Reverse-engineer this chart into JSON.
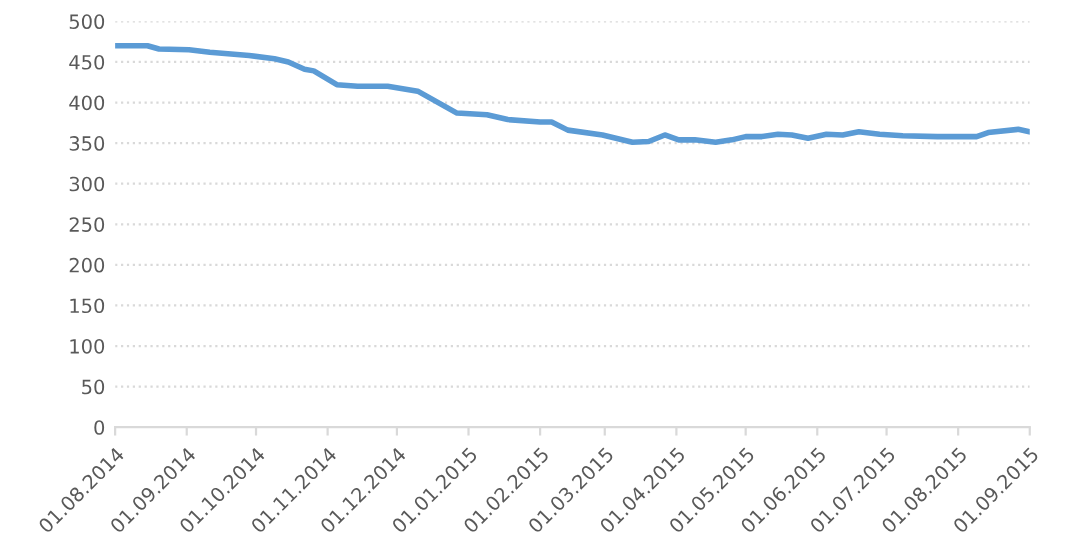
{
  "chart_data": {
    "type": "line",
    "x": [
      "2014-08-01",
      "2014-08-15",
      "2014-08-20",
      "2014-09-02",
      "2014-09-11",
      "2014-09-28",
      "2014-10-09",
      "2014-10-15",
      "2014-10-22",
      "2014-10-26",
      "2014-11-05",
      "2014-11-14",
      "2014-11-27",
      "2014-12-10",
      "2014-12-27",
      "2015-01-09",
      "2015-01-18",
      "2015-02-01",
      "2015-02-06",
      "2015-02-13",
      "2015-02-28",
      "2015-03-13",
      "2015-03-20",
      "2015-03-27",
      "2015-04-02",
      "2015-04-09",
      "2015-04-18",
      "2015-04-25",
      "2015-05-01",
      "2015-05-08",
      "2015-05-15",
      "2015-05-21",
      "2015-05-28",
      "2015-06-05",
      "2015-06-12",
      "2015-06-19",
      "2015-06-28",
      "2015-07-08",
      "2015-07-23",
      "2015-08-09",
      "2015-08-14",
      "2015-08-27",
      "2015-09-01"
    ],
    "series": [
      {
        "color": "#5b9bd5",
        "values": [
          470,
          470,
          466,
          465,
          462,
          458,
          454,
          450,
          441,
          439,
          422,
          420,
          420,
          414,
          387,
          385,
          379,
          376,
          376,
          366,
          360,
          351,
          352,
          360,
          354,
          354,
          351,
          354,
          358,
          358,
          361,
          360,
          356,
          361,
          360,
          364,
          361,
          359,
          358,
          358,
          363,
          367,
          364
        ]
      }
    ],
    "xlim": [
      "2014-08-01",
      "2015-09-01"
    ],
    "xticks": [
      {
        "value": "2014-08-01",
        "label": "01.08.2014"
      },
      {
        "value": "2014-09-01",
        "label": "01.09.2014"
      },
      {
        "value": "2014-10-01",
        "label": "01.10.2014"
      },
      {
        "value": "2014-11-01",
        "label": "01.11.2014"
      },
      {
        "value": "2014-12-01",
        "label": "01.12.2014"
      },
      {
        "value": "2015-01-01",
        "label": "01.01.2015"
      },
      {
        "value": "2015-02-01",
        "label": "01.02.2015"
      },
      {
        "value": "2015-03-01",
        "label": "01.03.2015"
      },
      {
        "value": "2015-04-01",
        "label": "01.04.2015"
      },
      {
        "value": "2015-05-01",
        "label": "01.05.2015"
      },
      {
        "value": "2015-06-01",
        "label": "01.06.2015"
      },
      {
        "value": "2015-07-01",
        "label": "01.07.2015"
      },
      {
        "value": "2015-08-01",
        "label": "01.08.2015"
      },
      {
        "value": "2015-09-01",
        "label": "01.09.2015"
      }
    ],
    "ylim": [
      0,
      500
    ],
    "yticks": [
      0,
      50,
      100,
      150,
      200,
      250,
      300,
      350,
      400,
      450,
      500
    ],
    "grid": "y",
    "legend": false,
    "marker": "none",
    "line_style": "solid"
  }
}
